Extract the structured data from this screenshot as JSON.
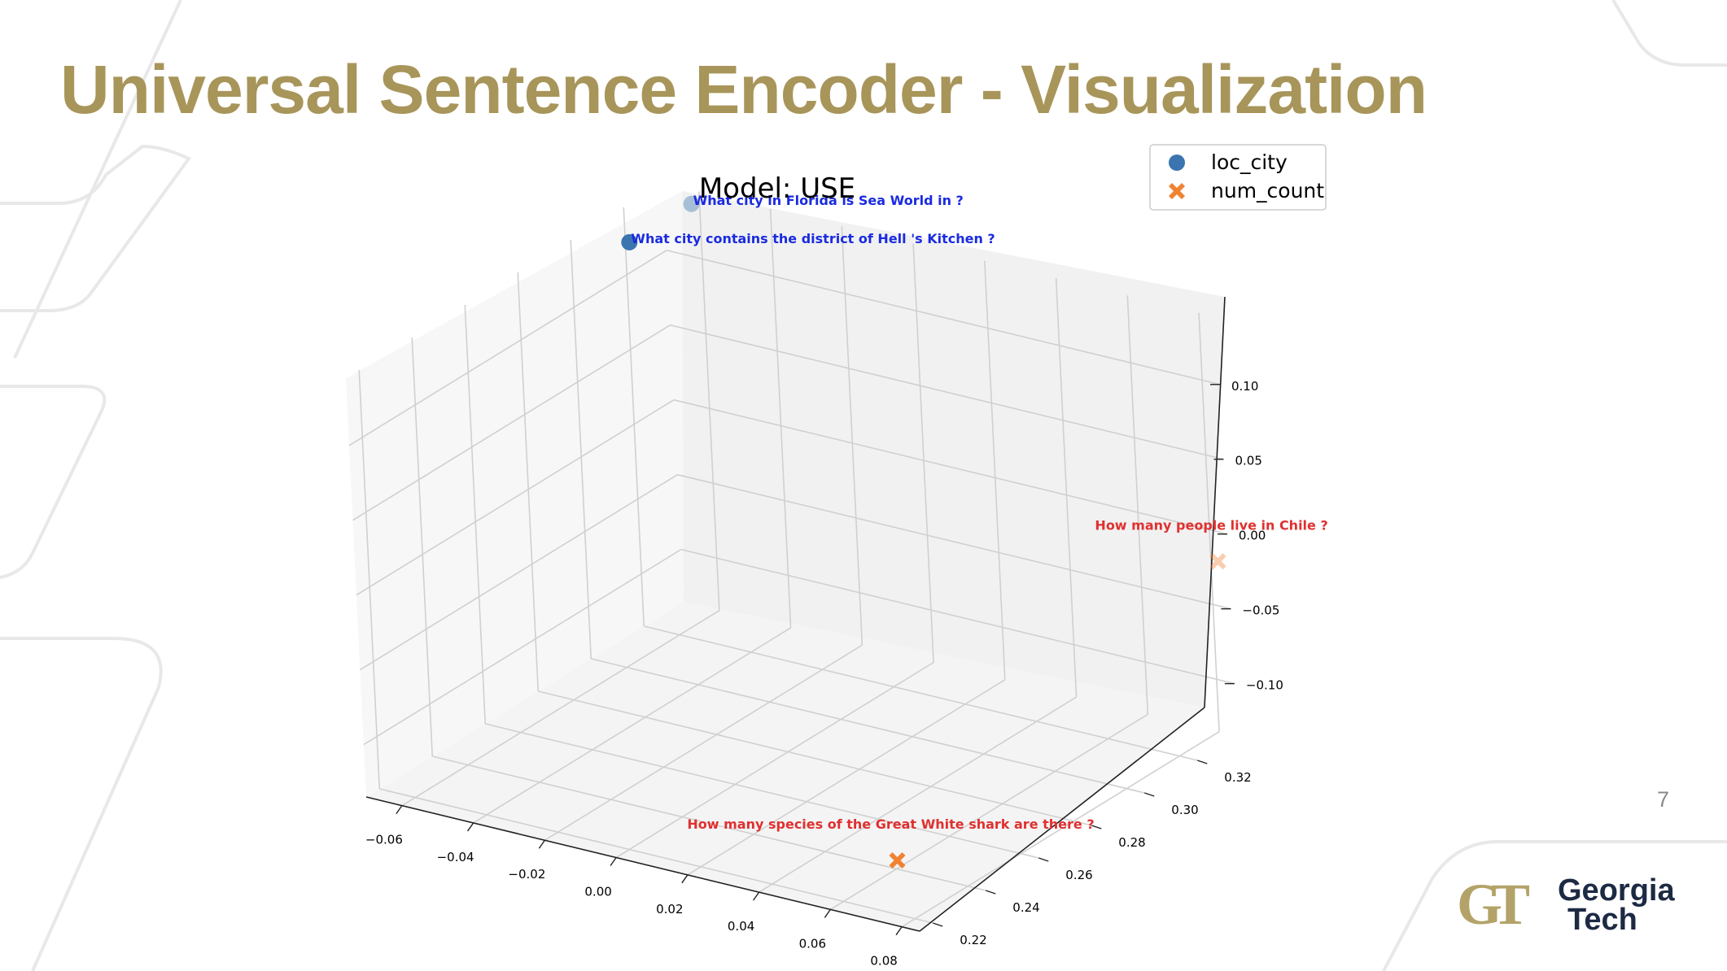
{
  "slide": {
    "title": "Universal Sentence Encoder - Visualization",
    "page_number": "7",
    "title_color": "#A8955A"
  },
  "logo": {
    "mark": "GT",
    "line1": "Georgia",
    "line2": "Tech",
    "mark_color": "#B3A369",
    "text_color": "#1D2A44"
  },
  "chart_data": {
    "type": "scatter",
    "projection": "3d",
    "title": "Model: USE",
    "xlabel": "",
    "ylabel": "",
    "zlabel": "",
    "xlim": [
      -0.07,
      0.085
    ],
    "ylim": [
      0.215,
      0.335
    ],
    "zlim": [
      -0.135,
      0.145
    ],
    "x_ticks": [
      "−0.06",
      "−0.04",
      "−0.02",
      "0.00",
      "0.02",
      "0.04",
      "0.06",
      "0.08"
    ],
    "y_ticks": [
      "0.22",
      "0.24",
      "0.26",
      "0.28",
      "0.30",
      "0.32"
    ],
    "z_ticks": [
      "−0.10",
      "−0.05",
      "0.00",
      "0.05",
      "0.10"
    ],
    "x_tick_values": [
      -0.06,
      -0.04,
      -0.02,
      0.0,
      0.02,
      0.04,
      0.06,
      0.08
    ],
    "y_tick_values": [
      0.22,
      0.24,
      0.26,
      0.28,
      0.3,
      0.32
    ],
    "z_tick_values": [
      -0.1,
      -0.05,
      0.0,
      0.05,
      0.1
    ],
    "grid": true,
    "legend_position": "top-right",
    "series": [
      {
        "name": "loc_city",
        "marker": "circle",
        "color": "#3A75AF",
        "label_color": "#1A2BE0",
        "points": [
          {
            "x": -0.065,
            "y": 0.315,
            "z": 0.13,
            "label": "What city contains the district of Hell 's Kitchen ?"
          },
          {
            "x": -0.06,
            "y": 0.332,
            "z": 0.14,
            "label": "What city in Florida is Sea World in ?"
          }
        ]
      },
      {
        "name": "num_count",
        "marker": "x",
        "color": "#F08232",
        "label_color": "#E03030",
        "points": [
          {
            "x": 0.075,
            "y": 0.221,
            "z": -0.1,
            "label": "How many species of the Great White shark are there ?"
          },
          {
            "x": 0.082,
            "y": 0.335,
            "z": -0.02,
            "label": "How many people live in Chile ?"
          }
        ]
      }
    ]
  }
}
